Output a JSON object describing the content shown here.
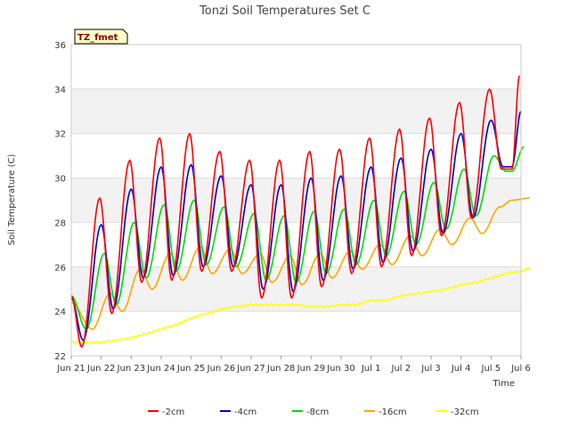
{
  "chart_data": {
    "type": "line",
    "title": "Tonzi Soil Temperatures Set C",
    "xlabel": "Time",
    "ylabel": "Soil Temperature (C)",
    "ylim": [
      22,
      36
    ],
    "xlim": [
      0,
      15
    ],
    "y_ticks": [
      "22",
      "24",
      "26",
      "28",
      "30",
      "32",
      "34",
      "36"
    ],
    "x_ticks": [
      "Jun 21",
      "Jun 22",
      "Jun 23",
      "Jun 24",
      "Jun 25",
      "Jun 26",
      "Jun 27",
      "Jun 28",
      "Jun 29",
      "Jun 30",
      "Jul 1",
      "Jul 2",
      "Jul 3",
      "Jul 4",
      "Jul 5",
      "Jul 6"
    ],
    "grid": true,
    "legend_position": "bottom",
    "site_label": "TZ_fmet",
    "x_units": "days since Jun 21",
    "series": [
      {
        "name": "-2cm",
        "color": "#ff0000",
        "peak_x": [
          0.95,
          1.95,
          2.95,
          3.95,
          4.95,
          5.95,
          6.95,
          7.95,
          8.95,
          9.95,
          10.95,
          11.95,
          12.95,
          13.95,
          14.95
        ],
        "peaks": [
          29.1,
          30.8,
          31.8,
          32.0,
          31.2,
          30.8,
          30.8,
          31.2,
          31.3,
          31.8,
          32.2,
          32.7,
          33.4,
          34.0,
          34.6
        ],
        "troughs": [
          24.7,
          22.4,
          23.9,
          25.3,
          25.4,
          25.8,
          25.8,
          24.6,
          24.6,
          25.1,
          25.7,
          26.0,
          26.5,
          27.4,
          28.2,
          30.4
        ]
      },
      {
        "name": "-4cm",
        "color": "#0000cc",
        "peak_x": [
          1.0,
          2.0,
          3.0,
          4.0,
          5.0,
          6.0,
          7.0,
          8.0,
          9.0,
          10.0,
          11.0,
          12.0,
          13.0,
          14.0,
          15.0
        ],
        "peaks": [
          27.9,
          29.5,
          30.5,
          30.6,
          30.1,
          29.7,
          29.7,
          30.0,
          30.1,
          30.5,
          30.9,
          31.3,
          32.0,
          32.6,
          33.0
        ],
        "troughs": [
          24.6,
          22.7,
          24.1,
          25.5,
          25.6,
          26.0,
          26.0,
          25.0,
          24.9,
          25.4,
          25.9,
          26.2,
          26.7,
          27.5,
          28.2,
          30.5
        ]
      },
      {
        "name": "-8cm",
        "color": "#00dd00",
        "peak_x": [
          1.1,
          2.1,
          3.1,
          4.1,
          5.1,
          6.1,
          7.1,
          8.1,
          9.1,
          10.1,
          11.1,
          12.1,
          13.1,
          14.1,
          15.1
        ],
        "peaks": [
          26.6,
          28.0,
          28.8,
          29.0,
          28.7,
          28.4,
          28.3,
          28.5,
          28.6,
          29.0,
          29.4,
          29.8,
          30.4,
          31.0,
          31.4
        ],
        "troughs": [
          24.7,
          23.2,
          24.3,
          25.5,
          25.8,
          26.1,
          26.0,
          25.4,
          25.3,
          25.7,
          26.1,
          26.5,
          27.0,
          27.7,
          28.3,
          30.3
        ]
      },
      {
        "name": "-16cm",
        "color": "#ffa500",
        "peak_x": [
          1.3,
          2.3,
          3.3,
          4.3,
          5.3,
          6.3,
          7.3,
          8.3,
          9.3,
          10.3,
          11.3,
          12.3,
          13.3,
          14.3,
          15.3
        ],
        "peaks": [
          24.8,
          25.9,
          26.6,
          26.9,
          26.8,
          26.6,
          26.5,
          26.6,
          26.7,
          27.0,
          27.4,
          27.7,
          28.2,
          28.7,
          29.1
        ],
        "troughs": [
          24.4,
          23.2,
          24.0,
          25.0,
          25.4,
          25.7,
          25.7,
          25.3,
          25.2,
          25.5,
          25.9,
          26.1,
          26.5,
          27.0,
          27.5,
          29.0
        ]
      },
      {
        "name": "-32cm",
        "color": "#ffff00",
        "x": [
          0.0,
          0.5,
          1.0,
          1.5,
          2.0,
          2.5,
          3.0,
          3.5,
          4.0,
          4.5,
          5.0,
          5.5,
          6.0,
          6.5,
          7.0,
          7.5,
          8.0,
          8.5,
          9.0,
          9.5,
          10.0,
          10.5,
          11.0,
          11.5,
          12.0,
          12.5,
          13.0,
          13.5,
          14.0,
          14.5,
          15.0,
          15.3
        ],
        "y": [
          22.6,
          22.6,
          22.6,
          22.7,
          22.8,
          23.0,
          23.2,
          23.4,
          23.7,
          23.9,
          24.1,
          24.2,
          24.3,
          24.3,
          24.3,
          24.3,
          24.2,
          24.2,
          24.3,
          24.3,
          24.5,
          24.5,
          24.7,
          24.8,
          24.9,
          25.0,
          25.2,
          25.3,
          25.5,
          25.7,
          25.8,
          26.0
        ]
      }
    ]
  }
}
